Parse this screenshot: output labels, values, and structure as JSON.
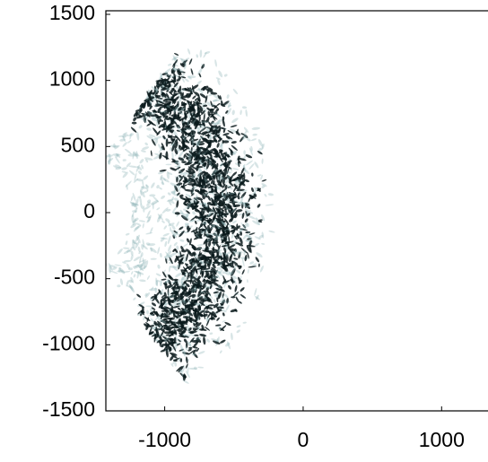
{
  "chart_data": {
    "type": "heatmap",
    "xlim": [
      -1425,
      1335
    ],
    "xticks": [
      -1000,
      0,
      1000
    ],
    "ylim": [
      -1500,
      1500
    ],
    "yticks": [
      -1500,
      -1000,
      -500,
      0,
      500,
      1000,
      1500
    ]
  }
}
